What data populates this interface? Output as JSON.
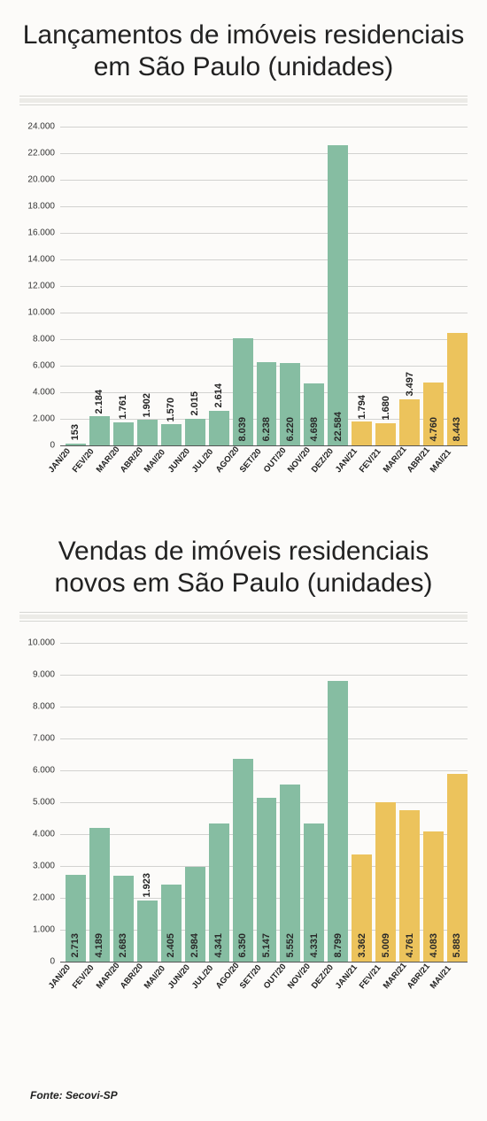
{
  "charts": [
    {
      "title": "Lançamentos de imóveis residenciais em São Paulo (unidades)",
      "type": "bar",
      "ymax": 24000,
      "ytick_step": 2000,
      "label_inside_threshold": 3500,
      "grid_color": "#d2d2d0",
      "background_color": "#fcfbf9",
      "categories": [
        "JAN/20",
        "FEV/20",
        "MAR/20",
        "ABR/20",
        "MAI/20",
        "JUN/20",
        "JUL/20",
        "AGO/20",
        "SET/20",
        "OUT/20",
        "NOV/20",
        "DEZ/20",
        "JAN/21",
        "FEV/21",
        "MAR/21",
        "ABR/21",
        "MAI/21"
      ],
      "values": [
        153,
        2184,
        1761,
        1902,
        1570,
        2015,
        2614,
        8039,
        6238,
        6220,
        4698,
        22584,
        1794,
        1680,
        3497,
        4760,
        8443
      ],
      "labels": [
        "153",
        "2.184",
        "1.761",
        "1.902",
        "1.570",
        "2.015",
        "2.614",
        "8.039",
        "6.238",
        "6.220",
        "4.698",
        "22.584",
        "1.794",
        "1.680",
        "3.497",
        "4.760",
        "8.443"
      ],
      "colors": [
        "#86bda2",
        "#86bda2",
        "#86bda2",
        "#86bda2",
        "#86bda2",
        "#86bda2",
        "#86bda2",
        "#86bda2",
        "#86bda2",
        "#86bda2",
        "#86bda2",
        "#86bda2",
        "#ecc35c",
        "#ecc35c",
        "#ecc35c",
        "#ecc35c",
        "#ecc35c"
      ],
      "yticks": [
        "0",
        "2.000",
        "4.000",
        "6.000",
        "8.000",
        "10.000",
        "12.000",
        "14.000",
        "16.000",
        "18.000",
        "20.000",
        "22.000",
        "24.000"
      ]
    },
    {
      "title": "Vendas de imóveis residenciais novos em São Paulo (unidades)",
      "type": "bar",
      "ymax": 10000,
      "ytick_step": 1000,
      "label_inside_threshold": 2000,
      "grid_color": "#d2d2d0",
      "background_color": "#fcfbf9",
      "categories": [
        "JAN/20",
        "FEV/20",
        "MAR/20",
        "ABR/20",
        "MAI/20",
        "JUN/20",
        "JUL/20",
        "AGO/20",
        "SET/20",
        "OUT/20",
        "NOV/20",
        "DEZ/20",
        "JAN/21",
        "FEV/21",
        "MAR/21",
        "ABR/21",
        "MAI/21"
      ],
      "values": [
        2713,
        4189,
        2683,
        1923,
        2405,
        2984,
        4341,
        6350,
        5147,
        5552,
        4331,
        8799,
        3362,
        5009,
        4761,
        4083,
        5883
      ],
      "labels": [
        "2.713",
        "4.189",
        "2.683",
        "1.923",
        "2.405",
        "2.984",
        "4.341",
        "6.350",
        "5.147",
        "5.552",
        "4.331",
        "8.799",
        "3.362",
        "5.009",
        "4.761",
        "4.083",
        "5.883"
      ],
      "colors": [
        "#86bda2",
        "#86bda2",
        "#86bda2",
        "#86bda2",
        "#86bda2",
        "#86bda2",
        "#86bda2",
        "#86bda2",
        "#86bda2",
        "#86bda2",
        "#86bda2",
        "#86bda2",
        "#ecc35c",
        "#ecc35c",
        "#ecc35c",
        "#ecc35c",
        "#ecc35c"
      ],
      "yticks": [
        "0",
        "1.000",
        "2.000",
        "3.000",
        "4.000",
        "5.000",
        "6.000",
        "7.000",
        "8.000",
        "9.000",
        "10.000"
      ]
    }
  ],
  "source": "Fonte: Secovi-SP",
  "title_fontsize": 30,
  "label_fontsize": 11,
  "xlabel_fontsize": 9.5
}
